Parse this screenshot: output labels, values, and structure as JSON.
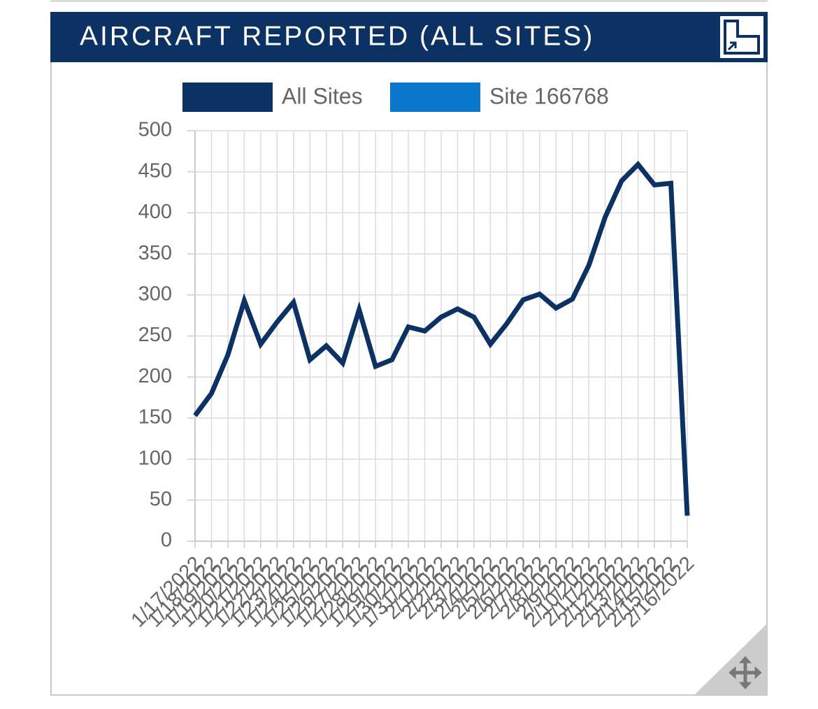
{
  "chart_data": {
    "type": "line",
    "title": "AIRCRAFT REPORTED (ALL SITES)",
    "categories": [
      "1/17/2022",
      "1/18/2022",
      "1/19/2022",
      "1/20/2022",
      "1/21/2022",
      "1/22/2022",
      "1/23/2022",
      "1/24/2022",
      "1/25/2022",
      "1/26/2022",
      "1/27/2022",
      "1/28/2022",
      "1/29/2022",
      "1/30/2022",
      "1/31/2022",
      "2/1/2022",
      "2/2/2022",
      "2/3/2022",
      "2/4/2022",
      "2/5/2022",
      "2/6/2022",
      "2/7/2022",
      "2/8/2022",
      "2/9/2022",
      "2/10/2022",
      "2/11/2022",
      "2/12/2022",
      "2/13/2022",
      "2/14/2022",
      "2/15/2022",
      "2/16/2022"
    ],
    "series": [
      {
        "name": "All Sites",
        "color": "#0b3262",
        "values": [
          153,
          180,
          227,
          293,
          240,
          267,
          291,
          221,
          238,
          217,
          282,
          213,
          221,
          261,
          256,
          273,
          283,
          273,
          240,
          265,
          294,
          301,
          284,
          295,
          336,
          395,
          439,
          459,
          434,
          436,
          31
        ]
      },
      {
        "name": "Site 166768",
        "color": "#0a77cc",
        "values": [
          null,
          null,
          null,
          null,
          null,
          null,
          null,
          null,
          null,
          null,
          null,
          null,
          null,
          null,
          null,
          null,
          null,
          null,
          null,
          null,
          null,
          null,
          null,
          null,
          null,
          null,
          null,
          null,
          null,
          null,
          null
        ]
      }
    ],
    "ylim": [
      0,
      500
    ],
    "yticks": [
      0,
      50,
      100,
      150,
      200,
      250,
      300,
      350,
      400,
      450,
      500
    ],
    "grid": true,
    "legend": "top"
  }
}
